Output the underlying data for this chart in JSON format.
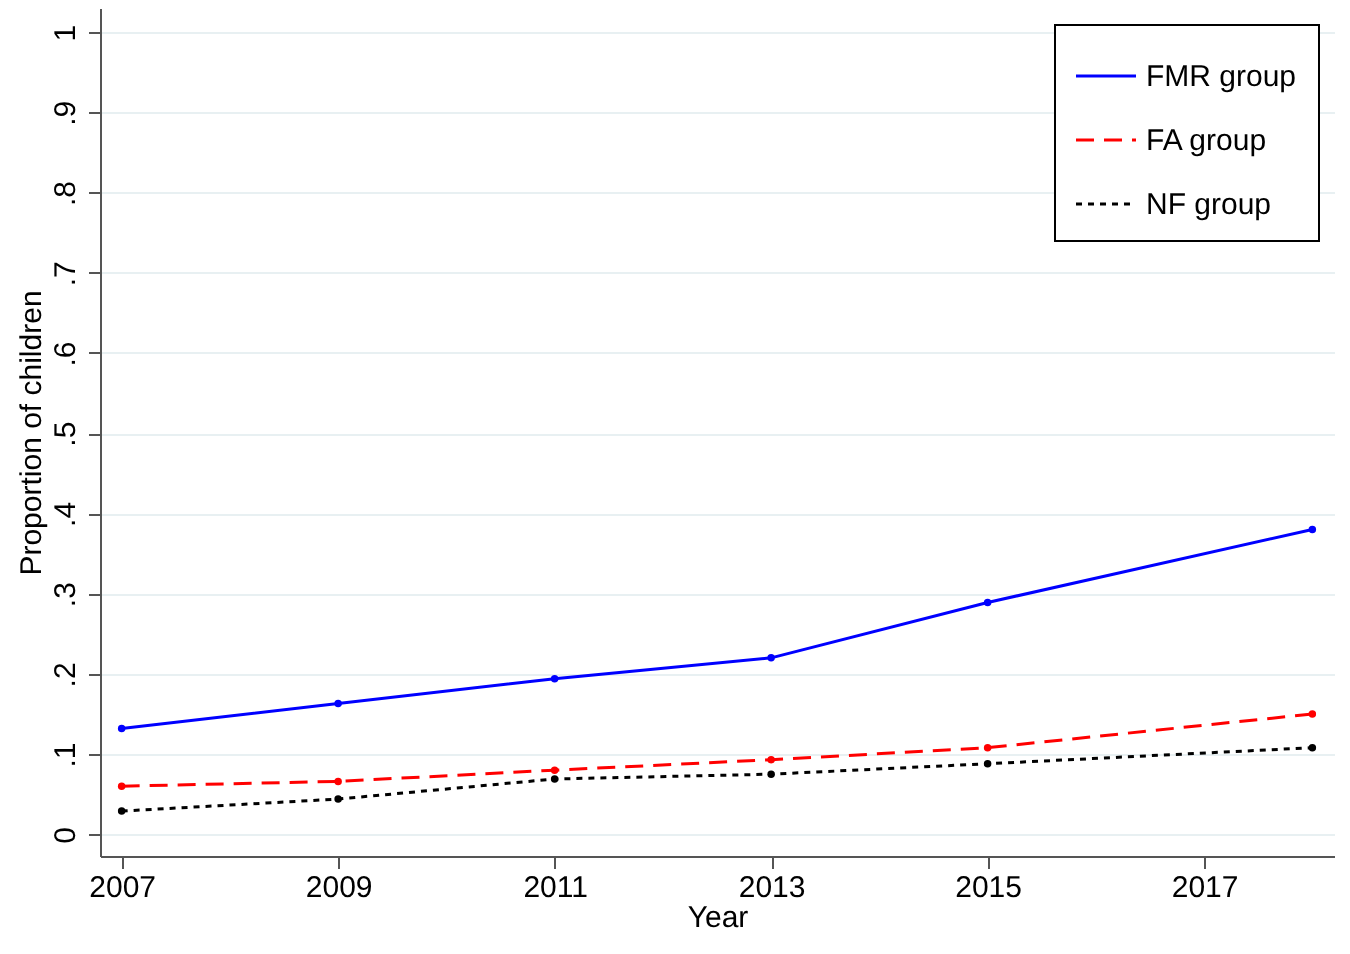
{
  "chart_data": {
    "type": "line",
    "xlabel": "Year",
    "ylabel": "Proportion of children",
    "x": [
      2007,
      2009,
      2011,
      2013,
      2015,
      2018
    ],
    "series": [
      {
        "name": "FMR group",
        "color": "#0000ff",
        "line_style": "solid",
        "values": [
          0.132,
          0.163,
          0.194,
          0.22,
          0.289,
          0.38
        ]
      },
      {
        "name": "FA group",
        "color": "#ff0000",
        "line_style": "dashed",
        "values": [
          0.06,
          0.066,
          0.08,
          0.093,
          0.108,
          0.15
        ]
      },
      {
        "name": "NF group",
        "color": "#000000",
        "line_style": "dotted",
        "values": [
          0.029,
          0.044,
          0.069,
          0.075,
          0.088,
          0.108
        ]
      }
    ],
    "xlim": [
      2006.8,
      2018.2
    ],
    "xticks": [
      2007,
      2009,
      2011,
      2013,
      2015,
      2017
    ],
    "ylim": [
      -0.027,
      1.03
    ],
    "yticks": [
      0,
      {
        "value": 0.1,
        "label": ".1"
      },
      {
        "value": 0.2,
        "label": ".2"
      },
      {
        "value": 0.3,
        "label": ".3"
      },
      {
        "value": 0.4,
        "label": ".4"
      },
      {
        "value": 0.5,
        "label": ".5"
      },
      {
        "value": 0.6,
        "label": ".6"
      },
      {
        "value": 0.7,
        "label": ".7"
      },
      {
        "value": 0.8,
        "label": ".8"
      },
      {
        "value": 0.9,
        "label": ".9"
      },
      1
    ],
    "grid": "y",
    "legend": "top right",
    "marker": "circle"
  }
}
